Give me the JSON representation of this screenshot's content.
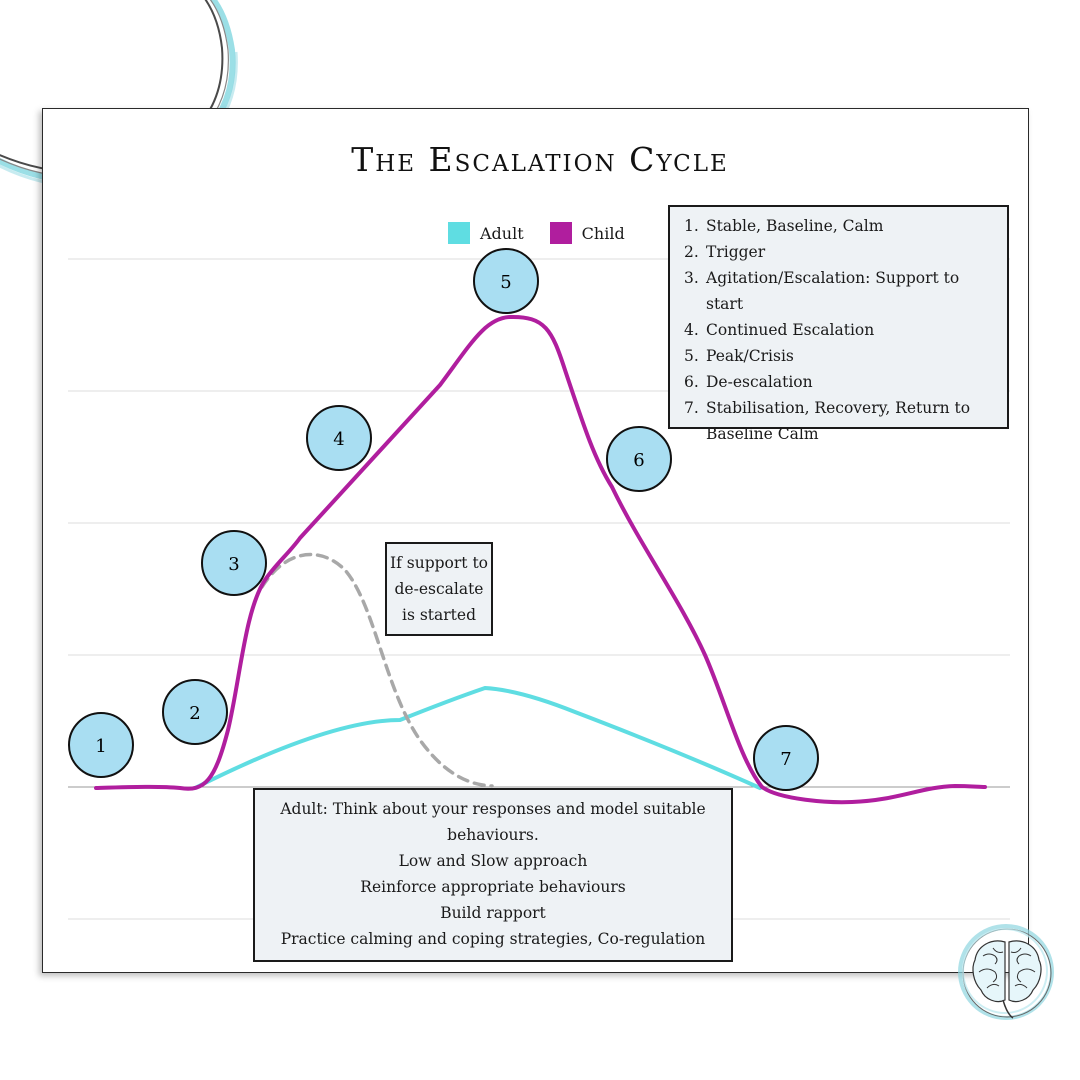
{
  "title": "The Escalation Cycle",
  "legend": [
    {
      "label": "Adult",
      "color": "#5fdde2"
    },
    {
      "label": "Child",
      "color": "#b01e9e"
    }
  ],
  "stages": [
    {
      "label": "1"
    },
    {
      "label": "2"
    },
    {
      "label": "3"
    },
    {
      "label": "4"
    },
    {
      "label": "5"
    },
    {
      "label": "6"
    },
    {
      "label": "7"
    }
  ],
  "stage_list": [
    {
      "num": "1.",
      "text": "Stable, Baseline, Calm"
    },
    {
      "num": "2.",
      "text": "Trigger"
    },
    {
      "num": "3.",
      "text": "Agitation/Escalation: Support to start"
    },
    {
      "num": "4.",
      "text": "Continued Escalation"
    },
    {
      "num": "5.",
      "text": "Peak/Crisis"
    },
    {
      "num": "6.",
      "text": "De-escalation"
    },
    {
      "num": "7.",
      "text": " Stabilisation, Recovery, Return to Baseline Calm"
    }
  ],
  "support_note": [
    "If support to",
    "de-escalate",
    "is started"
  ],
  "adult_guidance": [
    "Adult: Think about your responses and model suitable behaviours.",
    "Low and Slow approach",
    "Reinforce appropriate behaviours",
    "Build rapport",
    "Practice calming and coping strategies, Co-regulation"
  ],
  "colors": {
    "child": "#b01e9e",
    "adult": "#5fdde2",
    "dashed": "#a8a8a8",
    "stage_fill": "#a9def2",
    "box_fill": "#eef2f5"
  },
  "icons": [
    "brain-icon"
  ]
}
